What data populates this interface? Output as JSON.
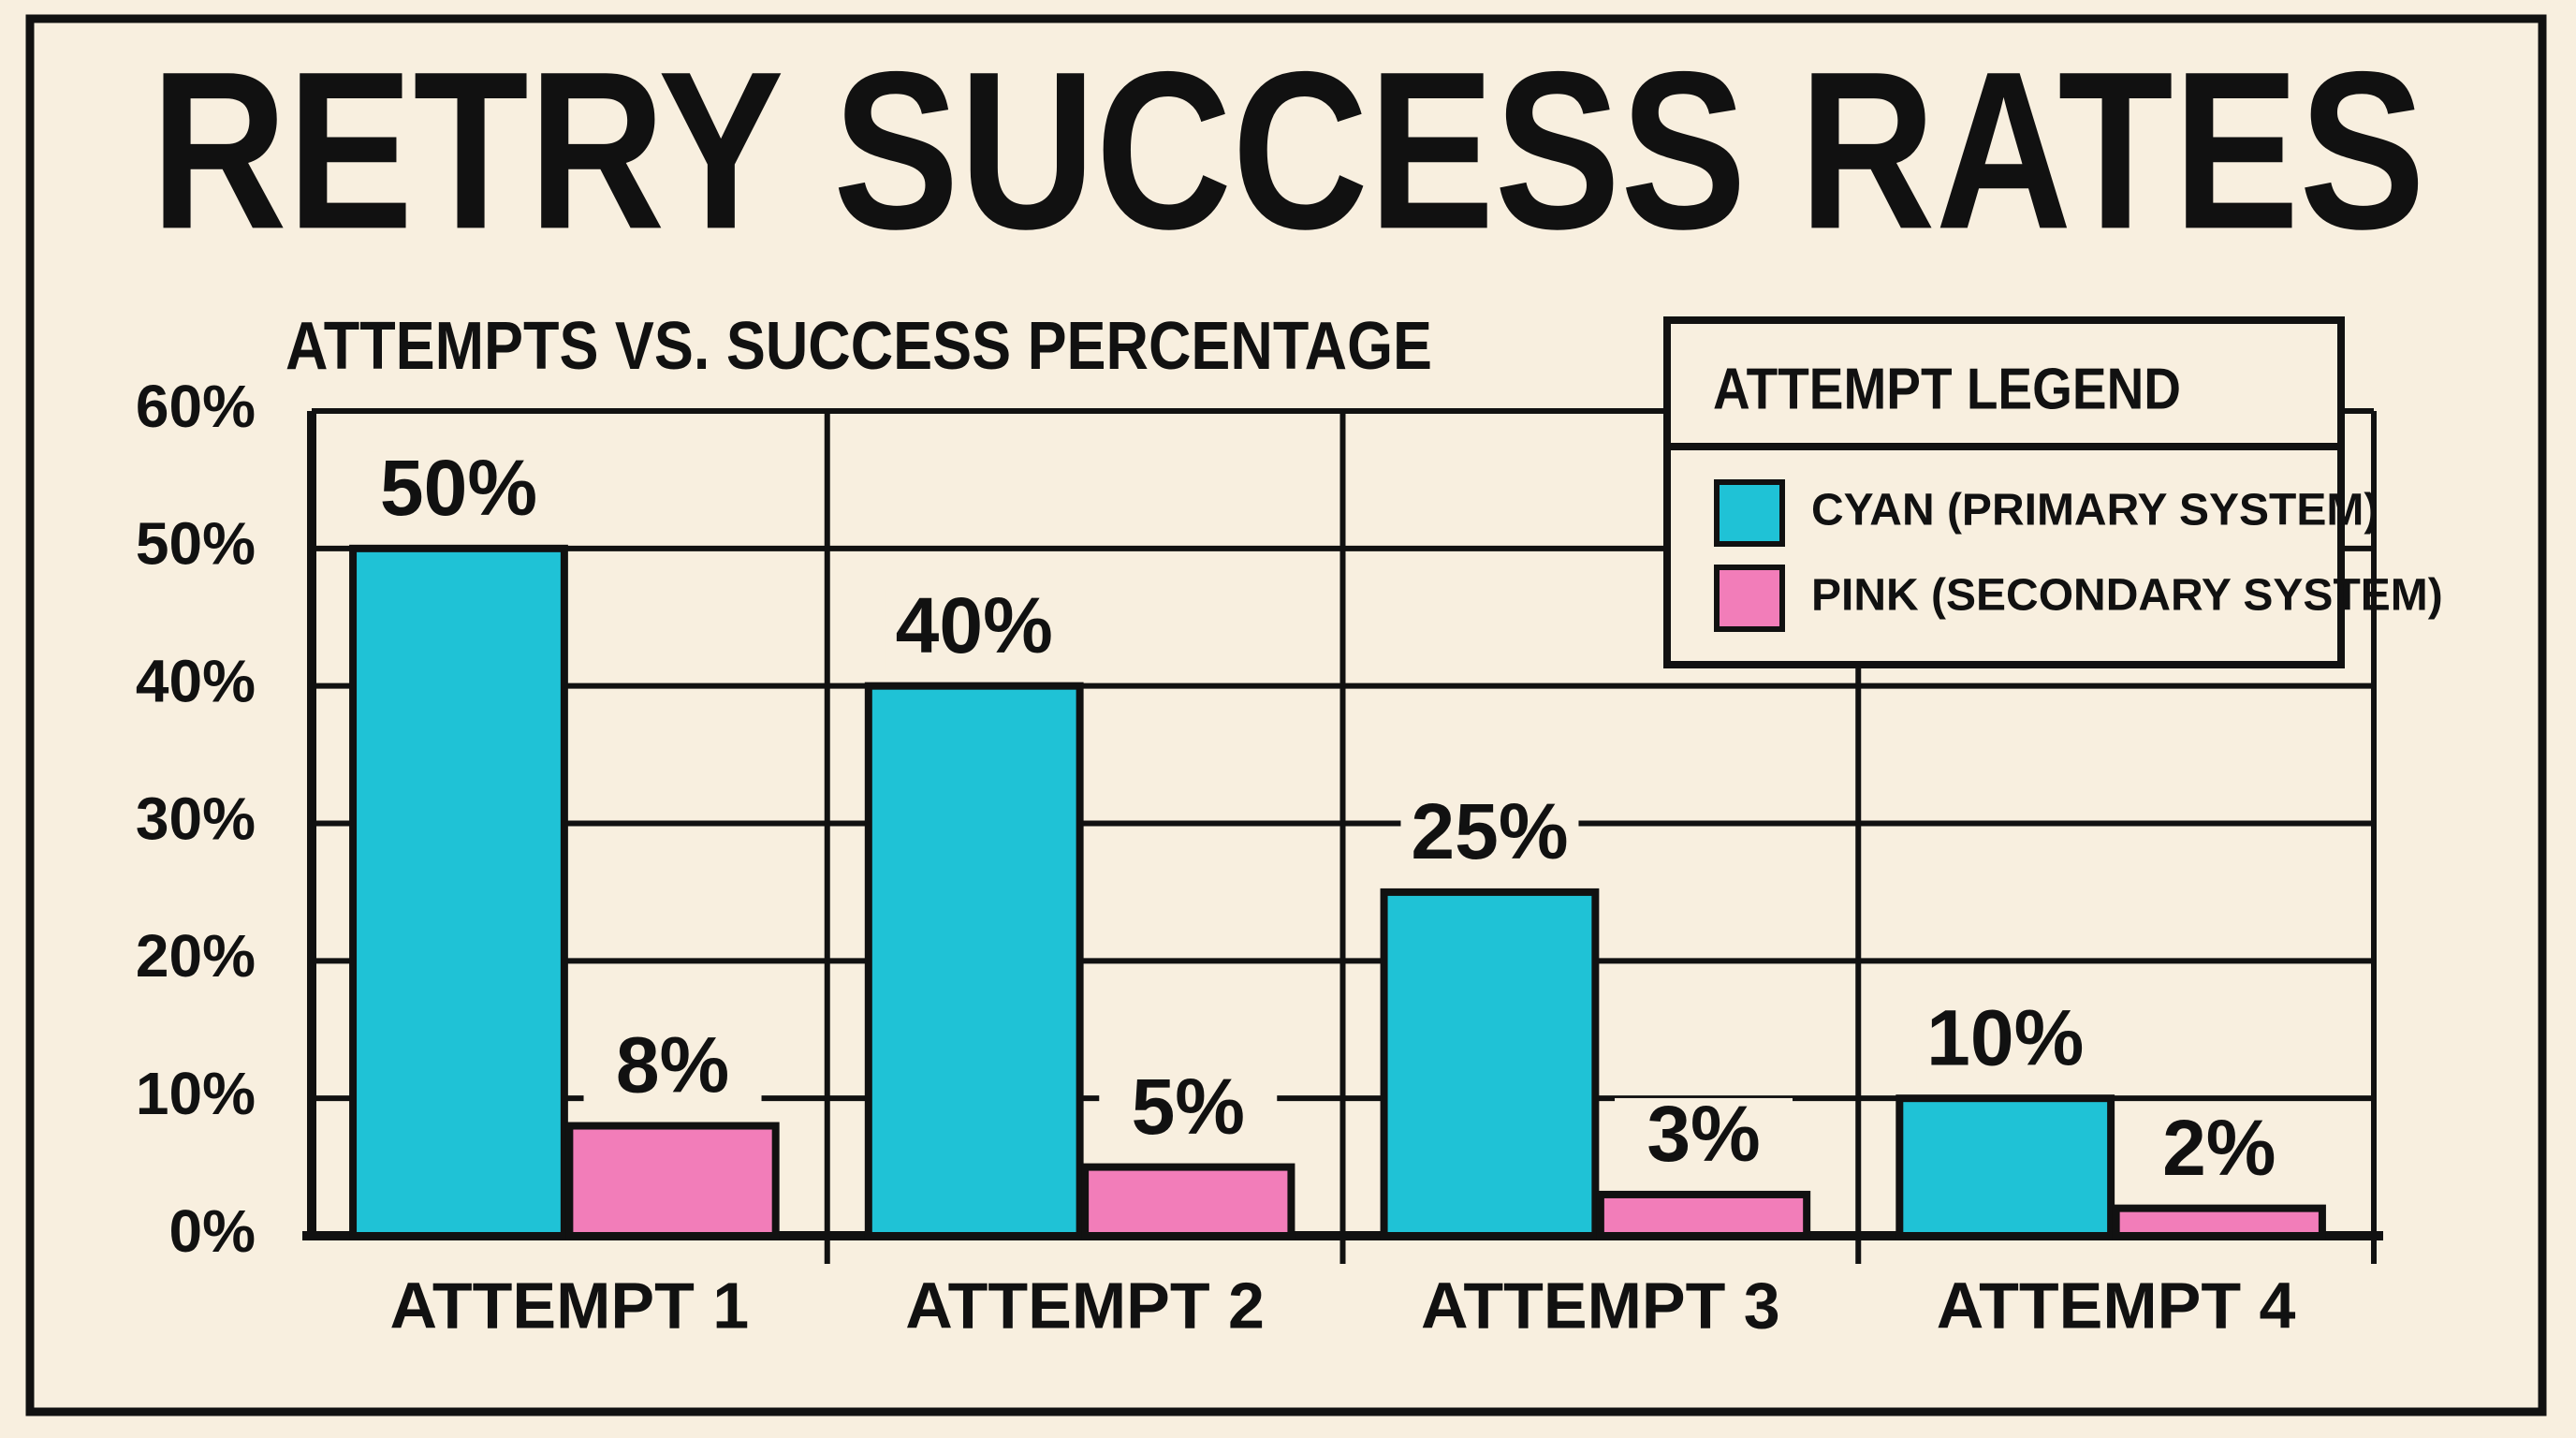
{
  "chart_data": {
    "type": "bar",
    "title": "RETRY SUCCESS RATES",
    "subtitle": "ATTEMPTS VS. SUCCESS PERCENTAGE",
    "legend_title": "ATTEMPT LEGEND",
    "legend_position": "upper right",
    "grid": true,
    "categories": [
      "ATTEMPT 1",
      "ATTEMPT 2",
      "ATTEMPT 3",
      "ATTEMPT 4"
    ],
    "series": [
      {
        "name": "CYAN (PRIMARY SYSTEM)",
        "color": "#1fc2d6",
        "values": [
          50,
          40,
          25,
          10
        ],
        "value_labels": [
          "50%",
          "40%",
          "25%",
          "10%"
        ]
      },
      {
        "name": "PINK (SECONDARY SYSTEM)",
        "color": "#f27db9",
        "values": [
          8,
          5,
          3,
          2
        ],
        "value_labels": [
          "8%",
          "5%",
          "3%",
          "2%"
        ]
      }
    ],
    "ylim": [
      0,
      60
    ],
    "yticks": [
      {
        "value": 0,
        "label": "0%"
      },
      {
        "value": 10,
        "label": "10%"
      },
      {
        "value": 20,
        "label": "20%"
      },
      {
        "value": 30,
        "label": "30%"
      },
      {
        "value": 40,
        "label": "40%"
      },
      {
        "value": 50,
        "label": "50%"
      },
      {
        "value": 60,
        "label": "60%"
      }
    ]
  }
}
